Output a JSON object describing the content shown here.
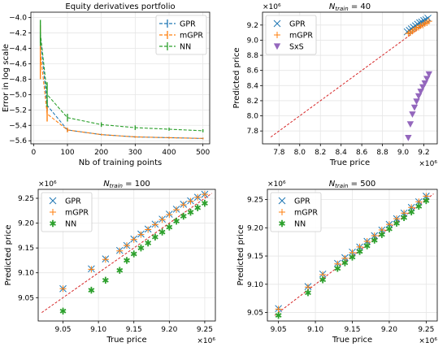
{
  "chart_data": [
    {
      "type": "line",
      "title": "Equity derivatives portfolio",
      "xlabel": "Nb of training points",
      "ylabel": "Error in log scale",
      "xlim": [
        -8,
        520
      ],
      "ylim": [
        -5.64,
        -3.93
      ],
      "xticks": [
        0,
        100,
        200,
        300,
        400,
        500
      ],
      "yticks": [
        -5.6,
        -5.4,
        -5.2,
        -5.0,
        -4.8,
        -4.6,
        -4.4,
        -4.2,
        -4.0
      ],
      "ytick_labels": [
        "−5.6",
        "−5.4",
        "−5.2",
        "−5.0",
        "−4.8",
        "−4.6",
        "−4.4",
        "−4.2",
        "−4.0"
      ],
      "grid": true,
      "legend_position": "top-right",
      "series": [
        {
          "name": "GPR",
          "color": "#1f77b4",
          "marker": "errorbar",
          "linestyle": "dashed",
          "x": [
            20,
            40,
            100,
            200,
            300,
            400,
            500
          ],
          "values": [
            -4.25,
            -5.14,
            -5.46,
            -5.52,
            -5.55,
            -5.56,
            -5.57
          ],
          "errors": [
            0.08,
            0.07,
            0.02,
            0.01,
            0.01,
            0.01,
            0.01
          ]
        },
        {
          "name": "mGPR",
          "color": "#ff7f0e",
          "marker": "errorbar",
          "linestyle": "dashed",
          "x": [
            20,
            40,
            100,
            200,
            300,
            400,
            500
          ],
          "values": [
            -4.45,
            -5.25,
            -5.46,
            -5.52,
            -5.55,
            -5.56,
            -5.57
          ],
          "errors": [
            0.35,
            0.1,
            0.03,
            0.01,
            0.01,
            0.01,
            0.01
          ]
        },
        {
          "name": "NN",
          "color": "#2ca02c",
          "marker": "errorbar",
          "linestyle": "dashed",
          "x": [
            20,
            40,
            100,
            200,
            300,
            400,
            500
          ],
          "values": [
            -4.2,
            -5.0,
            -5.3,
            -5.39,
            -5.43,
            -5.45,
            -5.47
          ],
          "errors": [
            0.17,
            0.16,
            0.05,
            0.03,
            0.03,
            0.02,
            0.02
          ]
        }
      ]
    },
    {
      "type": "scatter",
      "title": "N_train = 40",
      "title_main": "N",
      "title_sub": "train",
      "title_rest": " = 40",
      "xlabel": "True price",
      "ylabel": "Predicted price",
      "x_scale_label": "×10⁶",
      "y_scale_label": "×10⁶",
      "xlim": [
        7.64,
        9.33
      ],
      "ylim": [
        7.63,
        9.37
      ],
      "xticks": [
        7.8,
        8.0,
        8.2,
        8.4,
        8.6,
        8.8,
        9.0,
        9.2
      ],
      "xtick_labels": [
        "7.8",
        "8.0",
        "8.2",
        "8.4",
        "8.6",
        "8.8",
        "9.0",
        "9.2"
      ],
      "yticks": [
        7.8,
        8.0,
        8.2,
        8.4,
        8.6,
        8.8,
        9.0,
        9.2
      ],
      "ytick_labels": [
        "7.8",
        "8.0",
        "8.2",
        "8.4",
        "8.6",
        "8.8",
        "9.0",
        "9.2"
      ],
      "grid": true,
      "legend_position": "top-left",
      "diagonal": [
        7.72,
        9.26
      ],
      "series": [
        {
          "name": "GPR",
          "color": "#1f77b4",
          "marker": "x",
          "x": [
            9.04,
            9.06,
            9.08,
            9.1,
            9.12,
            9.14,
            9.16,
            9.18,
            9.2,
            9.22,
            9.24
          ],
          "values": [
            9.11,
            9.13,
            9.15,
            9.17,
            9.19,
            9.21,
            9.23,
            9.24,
            9.26,
            9.27,
            9.29
          ]
        },
        {
          "name": "mGPR",
          "color": "#ff7f0e",
          "marker": "plus",
          "x": [
            9.05,
            9.07,
            9.09,
            9.11,
            9.13,
            9.15,
            9.17,
            9.19,
            9.21,
            9.23,
            9.25
          ],
          "values": [
            9.09,
            9.1,
            9.12,
            9.14,
            9.16,
            9.17,
            9.19,
            9.2,
            9.22,
            9.23,
            9.25
          ]
        },
        {
          "name": "SxS",
          "color": "#9467bd",
          "marker": "triangle-down",
          "x": [
            9.05,
            9.07,
            9.09,
            9.11,
            9.13,
            9.15,
            9.17,
            9.19,
            9.21,
            9.23,
            9.25
          ],
          "values": [
            7.71,
            7.89,
            8.02,
            8.11,
            8.19,
            8.26,
            8.32,
            8.38,
            8.43,
            8.49,
            8.55
          ]
        }
      ]
    },
    {
      "type": "scatter",
      "title": "N_train = 100",
      "title_main": "N",
      "title_sub": "train",
      "title_rest": " = 100",
      "xlabel": "True price",
      "ylabel": "Predicted price",
      "x_scale_label": "×10⁶",
      "y_scale_label": "×10⁶",
      "xlim": [
        9.015,
        9.265
      ],
      "ylim": [
        9.003,
        9.268
      ],
      "xticks": [
        9.05,
        9.1,
        9.15,
        9.2,
        9.25
      ],
      "xtick_labels": [
        "9.05",
        "9.10",
        "9.15",
        "9.20",
        "9.25"
      ],
      "yticks": [
        9.05,
        9.1,
        9.15,
        9.2,
        9.25
      ],
      "ytick_labels": [
        "9.05",
        "9.10",
        "9.15",
        "9.20",
        "9.25"
      ],
      "grid": true,
      "legend_position": "top-left",
      "diagonal": [
        9.02,
        9.26
      ],
      "series": [
        {
          "name": "GPR",
          "color": "#1f77b4",
          "marker": "x",
          "x": [
            9.05,
            9.09,
            9.11,
            9.13,
            9.14,
            9.15,
            9.16,
            9.17,
            9.18,
            9.19,
            9.2,
            9.21,
            9.22,
            9.23,
            9.24,
            9.25
          ],
          "values": [
            9.068,
            9.108,
            9.128,
            9.145,
            9.155,
            9.168,
            9.178,
            9.188,
            9.198,
            9.208,
            9.218,
            9.228,
            9.238,
            9.245,
            9.252,
            9.258
          ]
        },
        {
          "name": "mGPR",
          "color": "#ff7f0e",
          "marker": "plus",
          "x": [
            9.05,
            9.09,
            9.11,
            9.13,
            9.14,
            9.15,
            9.16,
            9.17,
            9.18,
            9.19,
            9.2,
            9.21,
            9.22,
            9.23,
            9.24,
            9.25
          ],
          "values": [
            9.068,
            9.107,
            9.127,
            9.144,
            9.155,
            9.167,
            9.177,
            9.187,
            9.197,
            9.207,
            9.217,
            9.227,
            9.237,
            9.244,
            9.252,
            9.258
          ]
        },
        {
          "name": "NN",
          "color": "#2ca02c",
          "marker": "asterisk",
          "x": [
            9.05,
            9.09,
            9.11,
            9.13,
            9.14,
            9.15,
            9.16,
            9.17,
            9.18,
            9.19,
            9.2,
            9.21,
            9.22,
            9.23,
            9.24,
            9.25
          ],
          "values": [
            9.023,
            9.065,
            9.085,
            9.105,
            9.125,
            9.138,
            9.15,
            9.16,
            9.172,
            9.182,
            9.192,
            9.204,
            9.214,
            9.222,
            9.231,
            9.24
          ]
        }
      ]
    },
    {
      "type": "scatter",
      "title": "N_train = 500",
      "title_main": "N",
      "title_sub": "train",
      "title_rest": " = 500",
      "xlabel": "True price",
      "ylabel": "Predicted price",
      "x_scale_label": "×10⁶",
      "y_scale_label": "×10⁶",
      "xlim": [
        9.035,
        9.265
      ],
      "ylim": [
        9.035,
        9.268
      ],
      "xticks": [
        9.05,
        9.1,
        9.15,
        9.2,
        9.25
      ],
      "xtick_labels": [
        "9.05",
        "9.10",
        "9.15",
        "9.20",
        "9.25"
      ],
      "yticks": [
        9.05,
        9.1,
        9.15,
        9.2,
        9.25
      ],
      "ytick_labels": [
        "9.05",
        "9.10",
        "9.15",
        "9.20",
        "9.25"
      ],
      "grid": true,
      "legend_position": "top-left",
      "diagonal": [
        9.045,
        9.26
      ],
      "series": [
        {
          "name": "GPR",
          "color": "#1f77b4",
          "marker": "x",
          "x": [
            9.05,
            9.09,
            9.11,
            9.13,
            9.14,
            9.15,
            9.16,
            9.17,
            9.18,
            9.19,
            9.2,
            9.21,
            9.22,
            9.23,
            9.24,
            9.25
          ],
          "values": [
            9.057,
            9.096,
            9.118,
            9.137,
            9.147,
            9.157,
            9.166,
            9.176,
            9.186,
            9.196,
            9.206,
            9.216,
            9.226,
            9.236,
            9.246,
            9.256
          ]
        },
        {
          "name": "mGPR",
          "color": "#ff7f0e",
          "marker": "plus",
          "x": [
            9.05,
            9.09,
            9.11,
            9.13,
            9.14,
            9.15,
            9.16,
            9.17,
            9.18,
            9.19,
            9.2,
            9.21,
            9.22,
            9.23,
            9.24,
            9.25
          ],
          "values": [
            9.056,
            9.095,
            9.117,
            9.136,
            9.146,
            9.156,
            9.166,
            9.176,
            9.186,
            9.196,
            9.206,
            9.216,
            9.226,
            9.236,
            9.246,
            9.256
          ]
        },
        {
          "name": "NN",
          "color": "#2ca02c",
          "marker": "asterisk",
          "x": [
            9.05,
            9.09,
            9.11,
            9.13,
            9.14,
            9.15,
            9.16,
            9.17,
            9.18,
            9.19,
            9.2,
            9.21,
            9.22,
            9.23,
            9.24,
            9.25
          ],
          "values": [
            9.045,
            9.085,
            9.108,
            9.128,
            9.138,
            9.148,
            9.158,
            9.168,
            9.178,
            9.188,
            9.198,
            9.208,
            9.218,
            9.228,
            9.238,
            9.248
          ]
        }
      ]
    }
  ]
}
